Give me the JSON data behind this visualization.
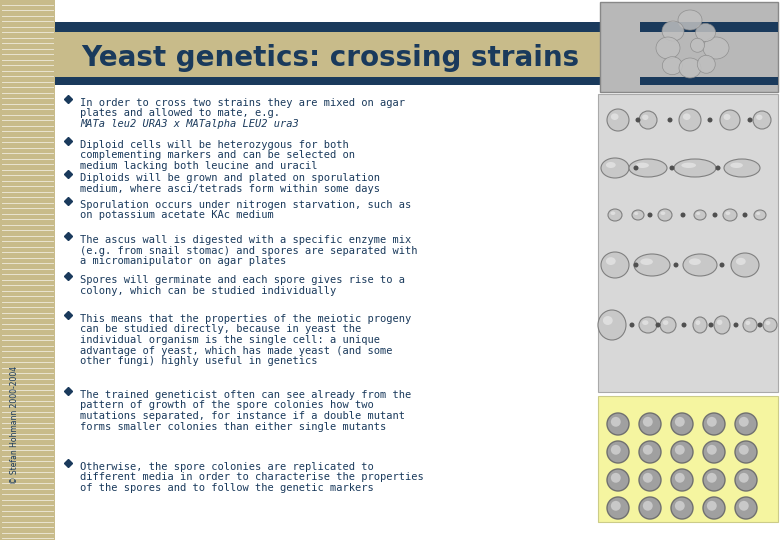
{
  "title": "Yeast genetics: crossing strains",
  "title_color": "#1a3a5c",
  "title_fontsize": 20,
  "bg_color": "#ffffff",
  "left_stripe_color": "#c8bb8a",
  "header_bar_color": "#1a3a5c",
  "bullet_color": "#1a3a5c",
  "text_color": "#1a3a5c",
  "copyright": "© Stefan Hohmann 2000-2004",
  "bullet_points": [
    "In order to cross two strains they are mixed on agar\nplates and allowed to mate, e.g.\nMATa leu2 URA3 x MATalpha LEU2 ura3",
    "Diploid cells will be heterozygous for both\ncomplementing markers and can be selected on\nmedium lacking both leucine and uracil",
    "Diploids will be grown and plated on sporulation\nmedium, where asci/tetrads form within some days",
    "Sporulation occurs under nitrogen starvation, such as\non potassium acetate KAc medium",
    "The ascus wall is digested with a specific enzyme mix\n(e.g. from snail stomac) and spores are separated with\na micromanipulator on agar plates",
    "Spores will germinate and each spore gives rise to a\ncolony, which can be studied individually",
    "This means that the properties of the meiotic progeny\ncan be studied directly, because in yeast the\nindividual organism is the single cell: a unique\nadvantage of yeast, which has made yeast (and some\nother fungi) highly useful in genetics",
    "The trained geneticist often can see already from the\npattern of growth of the spore colonies how two\nmutations separated, for instance if a double mutant\nforms smaller colonies than either single mutants",
    "Otherwise, the spore colonies are replicated to\ndifferent media in order to characterise the properties\nof the spores and to follow the genetic markers"
  ],
  "italic_line": "MATa leu2 URA3 x MATalpha LEU2 ura3",
  "right_panel_bg": "#d0d0d0",
  "bottom_panel_bg": "#f5f5a0",
  "grid_rows": 4,
  "grid_cols": 5,
  "circle_color": "#a0a0a0",
  "circle_edge_color": "#707070"
}
